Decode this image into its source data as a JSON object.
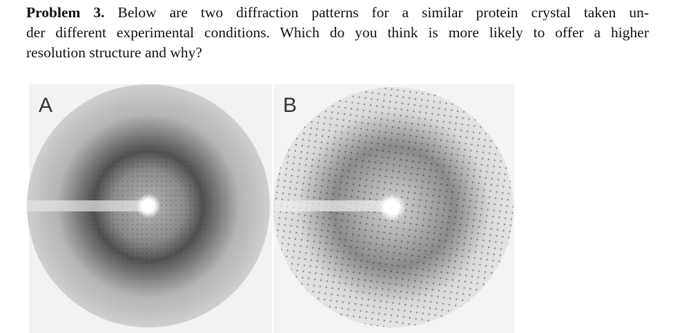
{
  "problem": {
    "label": "Problem 3.",
    "lines": [
      "Below are two diffraction patterns for a similar protein crystal taken un-",
      "der different experimental conditions. Which do you think is more likely to offer a higher",
      "resolution structure and why?"
    ]
  },
  "figure": {
    "panels": [
      {
        "label": "A"
      },
      {
        "label": "B"
      }
    ]
  }
}
